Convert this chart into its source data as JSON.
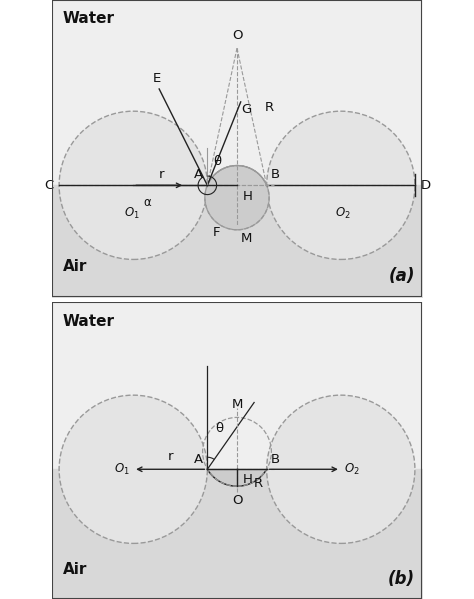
{
  "fig_width": 4.74,
  "fig_height": 5.99,
  "dpi": 100,
  "bg_water": "#efefef",
  "bg_air": "#d8d8d8",
  "circle_fill": "#e4e4e4",
  "circle_edge": "#999999",
  "meniscus_fill": "#cccccc",
  "line_color": "#222222",
  "dashed_color": "#999999",
  "label_color": "#111111",
  "border_color": "#444444",
  "fs_label": 9.5,
  "fs_water_air": 11.0,
  "fs_panel": 12.0,
  "r": 2.0,
  "O1x": 2.2,
  "O1y": 0.0,
  "O2x": 7.8,
  "O2y": 0.0,
  "mesh_y": 0.0,
  "xlim": [
    0,
    10
  ],
  "ylim_a": [
    -3.0,
    5.0
  ],
  "ylim_b": [
    -3.5,
    4.5
  ]
}
